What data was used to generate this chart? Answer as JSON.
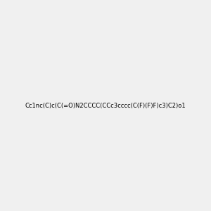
{
  "smiles": "Cc1nc(C)c(C(=O)N2CCCC(CCc3cccc(C(F)(F)F)c3)C2)o1",
  "image_size": 300,
  "background_color": "#f0f0f0",
  "title": "",
  "atom_colors": {
    "N": "#0000ff",
    "O": "#ff0000",
    "F": "#ff00ff"
  }
}
